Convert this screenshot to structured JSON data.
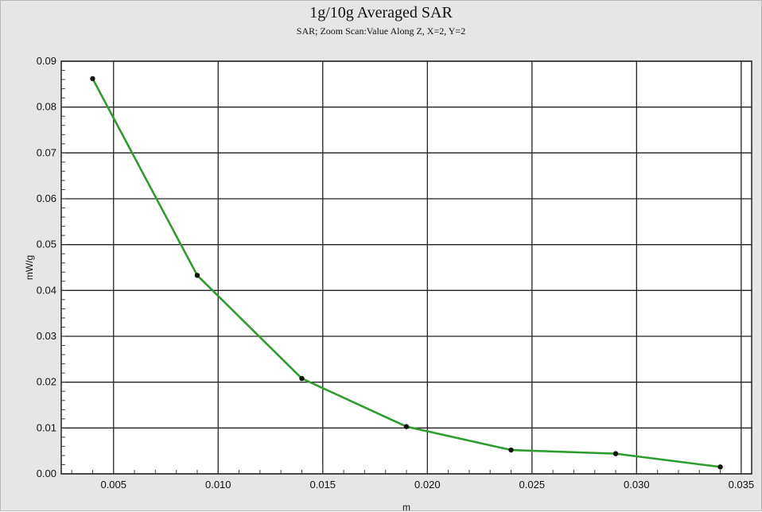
{
  "chart_data": {
    "type": "line",
    "title": "1g/10g Averaged SAR",
    "subtitle": "SAR; Zoom Scan:Value Along Z, X=2, Y=2",
    "xlabel": "m",
    "ylabel": "mW/g",
    "xlim": [
      0.0025,
      0.0355
    ],
    "ylim": [
      0.0,
      0.09
    ],
    "x_ticks": [
      0.005,
      0.01,
      0.015,
      0.02,
      0.025,
      0.03,
      0.035
    ],
    "x_tick_labels": [
      "0.005",
      "0.010",
      "0.015",
      "0.020",
      "0.025",
      "0.030",
      "0.035"
    ],
    "y_ticks": [
      0.0,
      0.01,
      0.02,
      0.03,
      0.04,
      0.05,
      0.06,
      0.07,
      0.08,
      0.09
    ],
    "y_tick_labels": [
      "0.00",
      "0.01",
      "0.02",
      "0.03",
      "0.04",
      "0.05",
      "0.06",
      "0.07",
      "0.08",
      "0.09"
    ],
    "grid": true,
    "series": [
      {
        "x": [
          0.004,
          0.009,
          0.014,
          0.019,
          0.024,
          0.029,
          0.034
        ],
        "y": [
          0.0862,
          0.0433,
          0.0208,
          0.0103,
          0.0052,
          0.0044,
          0.0015
        ],
        "color": "#2e9b2e",
        "marker_color": "#111111"
      }
    ]
  }
}
